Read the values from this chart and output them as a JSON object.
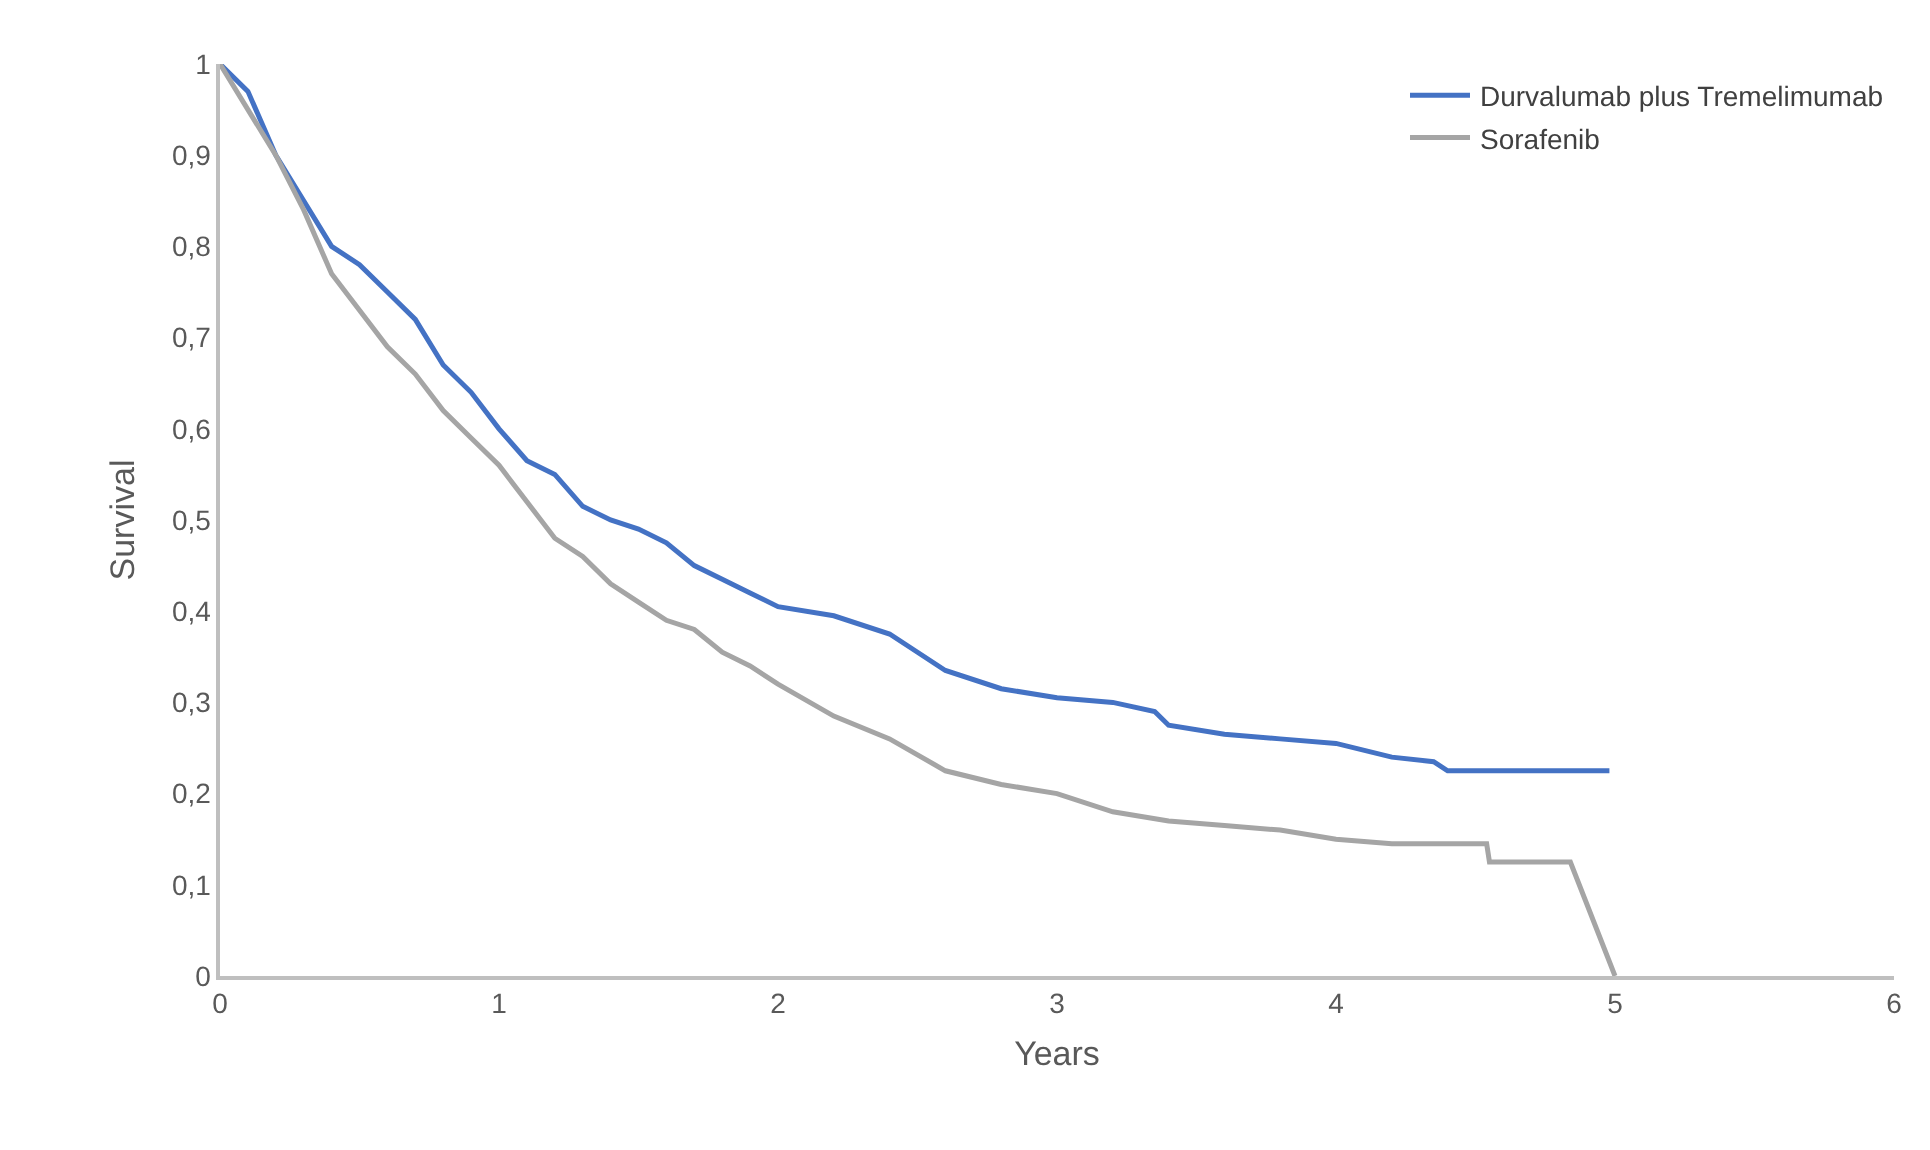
{
  "chart_data": {
    "type": "line",
    "xlabel": "Years",
    "ylabel": "Survival",
    "xlim": [
      0,
      6
    ],
    "xticks": [
      0,
      1,
      2,
      3,
      4,
      5,
      6
    ],
    "ylim": [
      0,
      1
    ],
    "yticks": [
      0,
      {
        "value": 0.1,
        "label": "0,1"
      },
      {
        "value": 0.2,
        "label": "0,2"
      },
      {
        "value": 0.3,
        "label": "0,3"
      },
      {
        "value": 0.4,
        "label": "0,4"
      },
      {
        "value": 0.5,
        "label": "0,5"
      },
      {
        "value": 0.6,
        "label": "0,6"
      },
      {
        "value": 0.7,
        "label": "0,7"
      },
      {
        "value": 0.8,
        "label": "0,8"
      },
      {
        "value": 0.9,
        "label": "0,9"
      },
      1
    ],
    "grid": false,
    "legend": "top right",
    "marker": "none",
    "line_style": "solid",
    "series": [
      {
        "name": "Durvalumab plus Tremelimumab",
        "color": "#4472c4",
        "x": [
          0,
          0.1,
          0.2,
          0.3,
          0.4,
          0.5,
          0.6,
          0.7,
          0.8,
          0.9,
          1.0,
          1.1,
          1.2,
          1.3,
          1.4,
          1.5,
          1.6,
          1.7,
          1.8,
          1.9,
          2.0,
          2.2,
          2.4,
          2.5,
          2.6,
          2.8,
          3.0,
          3.2,
          3.35,
          3.4,
          3.6,
          3.8,
          4.0,
          4.2,
          4.35,
          4.4,
          4.98
        ],
        "values": [
          1,
          0.97,
          0.9,
          0.85,
          0.8,
          0.78,
          0.75,
          0.72,
          0.67,
          0.64,
          0.6,
          0.565,
          0.55,
          0.515,
          0.5,
          0.49,
          0.475,
          0.45,
          0.435,
          0.42,
          0.405,
          0.395,
          0.375,
          0.355,
          0.335,
          0.315,
          0.305,
          0.3,
          0.29,
          0.275,
          0.265,
          0.26,
          0.255,
          0.24,
          0.235,
          0.225,
          0.225
        ]
      },
      {
        "name": "Sorafenib",
        "color": "#a5a5a5",
        "x": [
          0,
          0.1,
          0.2,
          0.3,
          0.4,
          0.5,
          0.6,
          0.7,
          0.8,
          0.9,
          1.0,
          1.1,
          1.2,
          1.3,
          1.4,
          1.5,
          1.6,
          1.7,
          1.8,
          1.9,
          2.0,
          2.2,
          2.4,
          2.6,
          2.8,
          3.0,
          3.2,
          3.4,
          3.6,
          3.8,
          4.0,
          4.2,
          4.54,
          4.55,
          4.84,
          5.0
        ],
        "values": [
          1,
          0.95,
          0.9,
          0.84,
          0.77,
          0.73,
          0.69,
          0.66,
          0.62,
          0.59,
          0.56,
          0.52,
          0.48,
          0.46,
          0.43,
          0.41,
          0.39,
          0.38,
          0.355,
          0.34,
          0.32,
          0.285,
          0.26,
          0.225,
          0.21,
          0.2,
          0.18,
          0.17,
          0.165,
          0.16,
          0.15,
          0.145,
          0.145,
          0.125,
          0.125,
          0
        ]
      }
    ]
  }
}
